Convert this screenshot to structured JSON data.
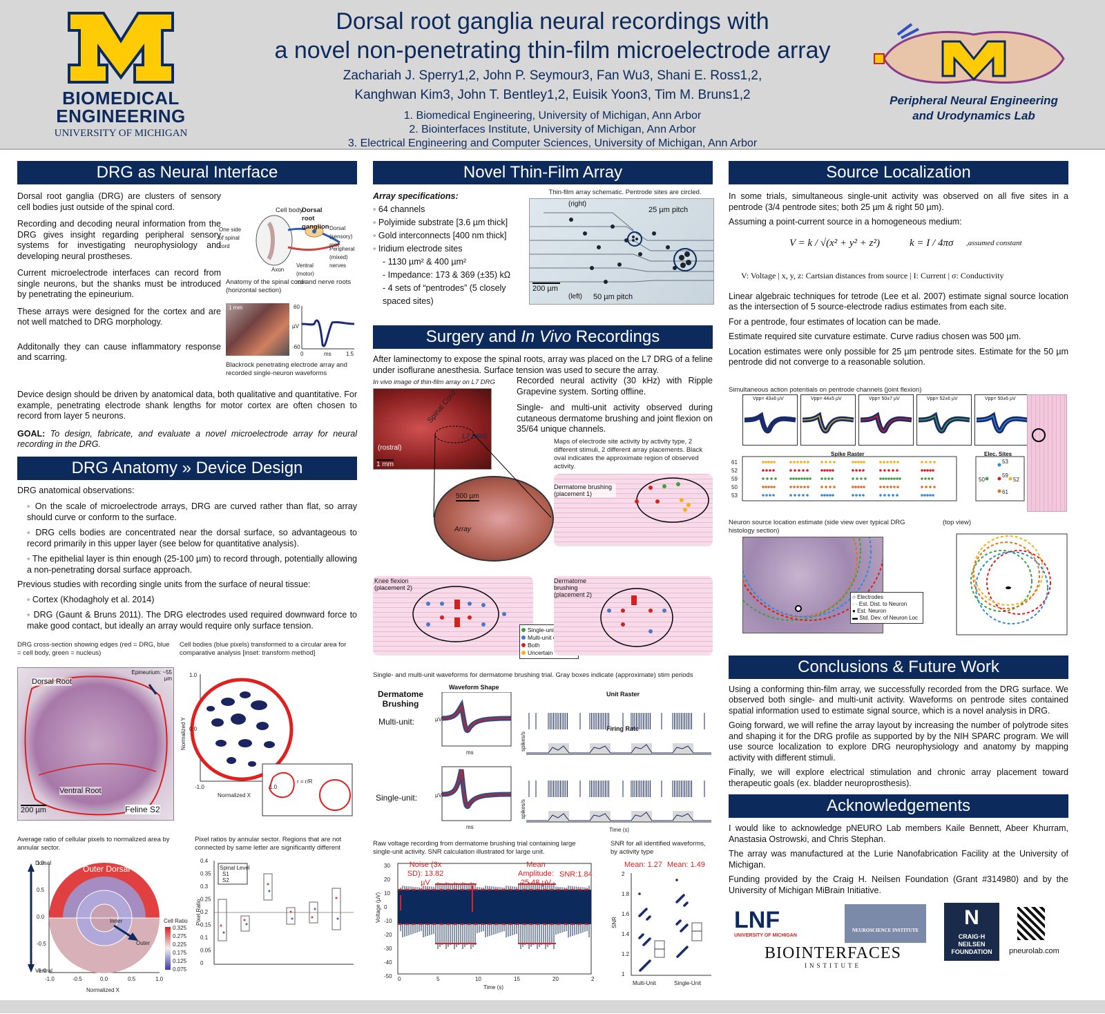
{
  "header": {
    "bme_logo": {
      "line1": "BIOMEDICAL",
      "line2": "ENGINEERING",
      "line3": "UNIVERSITY OF MICHIGAN"
    },
    "title_line1": "Dorsal root ganglia neural recordings with",
    "title_line2": "a novel non-penetrating thin-film microelectrode array",
    "authors_line1": "Zachariah J. Sperry1,2, John P. Seymour3, Fan Wu3, Shani E. Ross1,2,",
    "authors_line2": "Kanghwan Kim3, John T. Bentley1,2, Euisik Yoon3, Tim M. Bruns1,2",
    "affil1": "1. Biomedical Engineering, University of Michigan, Ann Arbor",
    "affil2": "2. Biointerfaces Institute, University of Michigan, Ann Arbor",
    "affil3": "3. Electrical Engineering and Computer Sciences, University of Michigan, Ann Arbor",
    "lab_line1": "Peripheral Neural Engineering",
    "lab_line2": "and Urodynamics Lab"
  },
  "col1": {
    "sec1_title": "DRG as Neural Interface",
    "p1": "Dorsal root ganglia (DRG) are clusters of sensory cell bodies just outside of the spinal cord.",
    "p2": "Recording and decoding neural information from the DRG gives insight regarding peripheral sensory systems for investigating neurophysiology and developing neural prostheses.",
    "p3": "Current microelectrode interfaces can record from single neurons, but the shanks must be introduced by penetrating the epineurium.",
    "p4": "These arrays were designed for the cortex and are not well matched to DRG morphology.",
    "p5": "Additonally they can cause inflammatory response and scarring.",
    "p6": "Device design should be driven by anatomical data, both qualitative and quantitative. For example, penetrating electrode shank lengths for motor cortex are often chosen to record from layer 5 neurons.",
    "goal_label": "GOAL:",
    "goal": "To design, fabricate, and evaluate a novel microelectrode array for neural recording in the DRG.",
    "anat_cap": "Anatomy of the spinal cord and nerve roots (horizontal section)",
    "anat_labels": {
      "cell_body": "Cell body",
      "drg": "Dorsal root ganglion",
      "one_side": "One side of spinal cord",
      "dorsal": "Dorsal (sensory) root",
      "peripheral": "Peripheral (mixed) nerves",
      "ventral": "Ventral (motor) root",
      "axon": "Axon"
    },
    "blackrock_cap": "Blackrock penetrating electrode array and recorded single-neuron waveforms",
    "blackrock_scale": "1 mm",
    "blackrock_axes": {
      "y_top": "60",
      "y_unit": "µV",
      "y_bot": "-60",
      "x_left": "0",
      "x_unit": "ms",
      "x_right": "1.5"
    },
    "sec2_title": "DRG Anatomy » Device Design",
    "anat_obs": "DRG anatomical observations:",
    "b1": "◦ On the scale of microelectrode arrays, DRG are curved rather than flat, so array should curve or conform to the surface.",
    "b2": "◦ DRG cells bodies are concentrated near the dorsal surface, so advantageous to record primarily in this upper layer (see below for quantitative analysis).",
    "b3": "◦ The epithelial layer is thin enough (25-100 µm) to record through, potentially allowing a non-penetrating dorsal surface approach.",
    "prev": "Previous studies with recording single units from the surface of neural tissue:",
    "b4": "◦ Cortex (Khodagholy et al. 2014)",
    "b5": "◦ DRG (Gaunt & Bruns 2011). The DRG electrodes used required downward force to make good contact, but ideally an array would require only surface tension.",
    "cap_xsec": "DRG cross-section showing edges (red = DRG, blue = cell body, green = nucleus)",
    "cap_circ": "Cell bodies (blue pixels) transformed to a circular area for comparative analysis [inset: transform method]",
    "xsec_labels": {
      "dorsal": "Dorsal Root",
      "ventral": "Ventral Root",
      "epi": "Epineurium: ~55 µm",
      "scale": "200 µm",
      "feline": "Feline S2"
    },
    "circ_axes": {
      "y1": "1.0",
      "y0": "0.0",
      "x1": "-1.0",
      "x2": "1.0",
      "xlabel": "Normalized X",
      "ylabel": "Normalized Y",
      "formula": "r = r/R"
    },
    "cap_ratio": "Average ratio of cellular pixels to normalized area by annular sector.",
    "cap_box": "Pixel ratios by annular sector. Regions that are not connected by same letter are significantly different",
    "polar_labels": {
      "outer_dorsal": "Outer Dorsal",
      "inner": "Inner",
      "outer": "Outer",
      "dorsal": "Dorsal",
      "ventral": "Ventral",
      "xlabel": "Normalized X",
      "ylabel": "Normalized Y",
      "cb_title": "Cell Ratio"
    },
    "colorbar_ticks": [
      "0.325",
      "0.275",
      "0.225",
      "0.175",
      "0.125",
      "0.075"
    ],
    "polar_yticks": [
      "1.0",
      "0.5",
      "0.0",
      "-0.5",
      "-1.0"
    ],
    "polar_xticks": [
      "-1.0",
      "-0.5",
      "0.0",
      "0.5",
      "1.0"
    ],
    "box_legend": {
      "title": "Spinal Level",
      "s1": "S1",
      "s2": "S2"
    },
    "box_ylabel": "Pixel Ratio",
    "box_yticks": [
      "0.4",
      "0.35",
      "0.3",
      "0.25",
      "0.2",
      "0.15",
      "0.1",
      "0.05",
      "0"
    ]
  },
  "col2": {
    "sec1_title": "Novel Thin-Film Array",
    "spec_title": "Array specifications:",
    "specs": [
      "◦ 64 channels",
      "◦ Polyimide substrate [3.6 µm thick]",
      "◦ Gold interconnects [400 nm thick]",
      "◦ Iridium electrode sites",
      "- 1130 µm² & 400 µm²",
      "- Impedance: 173 & 369 (±35) kΩ",
      "- 4 sets of “pentrodes” (5 closely spaced sites)"
    ],
    "array_cap": "Thin-film array schematic. Pentrode sites are circled.",
    "array_labels": {
      "right": "(right)",
      "left": "(left)",
      "p25": "25 µm pitch",
      "p50": "50 µm pitch",
      "scale": "200 µm"
    },
    "sec2_title_a": "Surgery and ",
    "sec2_title_b": "In Vivo",
    "sec2_title_c": " Recordings",
    "surg_p": "After laminectomy to expose the spinal roots, array was placed on the L7 DRG of a feline under isoflurane anesthesia. Surface tension was used to secure the array.",
    "invivo_cap": "In vivo image of thin-film array on L7 DRG",
    "invivo_labels": {
      "cord": "Spinal Cord",
      "l7": "L7 DRG",
      "rostral": "(rostral)",
      "mm": "1 mm",
      "um": "500 µm",
      "array": "Array"
    },
    "rec_p": "Recorded neural activity (30 kHz) with Ripple Grapevine system. Sorting offline.",
    "units_p": "Single- and multi-unit activity observed during cutaneous dermatome brushing and joint flexion on 35/64 unique channels.",
    "map_cap": "Maps of electrode site activity by activity type, 2 different stimuli, 2 different array placements. Black oval indicates the approximate region of observed activity.",
    "map1": "Dermatome brushing (placement 1)",
    "map2": "Knee flexion (placement 2)",
    "map3": "Dermatome brushing (placement 2)",
    "map_legend": [
      "Single-unit only",
      "Multi-unit only",
      "Both",
      "Uncertain"
    ],
    "wave_cap": "Single- and multi-unit waveforms for dermatome brushing trial. Gray boxes indicate (approximate) stim periods",
    "wave_labels": {
      "derm": "Dermatome Brushing",
      "multi": "Multi-unit:",
      "single": "Single-unit:",
      "shape": "Waveform Shape",
      "raster": "Unit Raster",
      "rate": "Firing Rate",
      "ms": "ms",
      "time": "Time (s)",
      "uv": "µV",
      "spk": "spikes/s"
    },
    "raw_cap": "Raw voltage recording from dermatome brushing trial containing large single-unit activity. SNR calculation illustrated for large unit.",
    "raw_labels": {
      "noise": "Noise (3x SD): 13.82 µV",
      "mean": "Mean Amplitude: 25.48 µV",
      "snr": "SNR:1.84",
      "ylabel": "Voltage (µV)",
      "xlabel": "Time (s)"
    },
    "raw_yticks": [
      "30",
      "20",
      "10",
      "0",
      "-10",
      "-20",
      "-30",
      "-40",
      "-50"
    ],
    "raw_xticks": [
      "0",
      "5",
      "10",
      "15",
      "20",
      "25"
    ],
    "snr_cap": "SNR for all identified waveforms, by activity type",
    "snr_labels": {
      "mean1": "Mean: 1.27",
      "mean2": "Mean: 1.49",
      "ylabel": "SNR",
      "multi": "Multi-Unit",
      "single": "Single-Unit"
    },
    "snr_yticks": [
      "2",
      "1.8",
      "1.6",
      "1.4",
      "1.2",
      "1"
    ]
  },
  "col3": {
    "sec1_title": "Source Localization",
    "p1": "In some trials, simultaneous single-unit activity was observed on all five sites in a pentrode (3/4 pentrode sites; both 25 µm & right 50 µm).",
    "p2": "Assuming a point-current source in a homogeneous medium:",
    "eq1": "V = k / √(x² + y² + z²)",
    "eq2": "k = I / 4πσ",
    "eq_note": ",assumed constant",
    "eq_legend": "V: Voltage | x, y, z: Cartsian distances from source | I: Current | σ: Conductivity",
    "p3": "Linear algebraic techniques for tetrode (Lee et al. 2007) estimate signal source location as the intersection of 5 source-electrode radius estimates from each site.",
    "p4": "For a pentrode, four estimates of location can be made.",
    "p5": "Estimate required site curvature estimate. Curve radius chosen was 500 µm.",
    "p6": "Location estimates were only possible for 25 µm pentrode sites. Estimate for the 50 µm pentrode did not converge to a reasonable solution.",
    "ap_cap": "Simultaneous action potentials on pentrode channels (joint flexion)",
    "ap_vpp": [
      "Vpp= 43±6 µV",
      "Vpp= 44±5 µV",
      "Vpp= 50±7 µV",
      "Vpp= 52±6 µV",
      "Vpp= 50±6 µV"
    ],
    "raster_title": "Spike Raster",
    "elec_title": "Elec. Sites",
    "elec_ids": [
      "53",
      "50",
      "59",
      "52",
      "61"
    ],
    "raster_channels": [
      "61",
      "52",
      "59",
      "50",
      "53"
    ],
    "loc_cap1": "Neuron source location estimate (side view over typical DRG histology section)",
    "loc_cap2": "(top view)",
    "loc_legend": [
      "Electrodes",
      "Est. Dist. to Neuron",
      "Est. Neuron",
      "Std. Dev. of Neuron Loc"
    ],
    "sec2_title": "Conclusions & Future Work",
    "c1": "Using a conforming thin-film array, we successfully recorded from the DRG surface. We observed both single- and multi-unit activity. Waveforms on pentrode sites contained spatial information used to estimate signal source, which is a novel analysis in DRG.",
    "c2": "Going forward, we will refine the array layout by increasing the number of polytrode sites and shaping it for the DRG profile as supported by by the NIH SPARC program. We will use source localization to explore DRG neurophysiology and anatomy by mapping activity with different stimuli.",
    "c3": "Finally, we will explore electrical stimulation and chronic array placement toward therapeutic goals (ex. bladder neuroprosthesis).",
    "sec3_title": "Acknowledgements",
    "a1": "I would like to acknowledge pNEURO Lab members Kaile Bennett, Abeer Khurram, Anastasia Ostrowski, and Chris Stephan.",
    "a2": "The array was manufactured at the Lurie Nanofabrication Facility at the University of Michigan.",
    "a3": "Funding provided by the Craig H. Neilsen Foundation (Grant #314980) and by the University of Michigan MiBrain Initiative.",
    "logos": {
      "lnf": "LNF",
      "lnf_sub": "UNIVERSITY OF MICHIGAN",
      "bio1": "BIO",
      "bio2": "INTERFACES",
      "bio3": "INSTITUTE",
      "neuro": "NEUROSCIENCE INSTITUTE",
      "craig1": "CRAIG·H",
      "craig2": "NEILSEN",
      "craig3": "FOUNDATION",
      "url": "pneurolab.com"
    }
  },
  "colors": {
    "navy": "#0c2a5c",
    "maize": "#ffcb05",
    "red": "#d62020",
    "header_bg": "#d7d7d7"
  }
}
